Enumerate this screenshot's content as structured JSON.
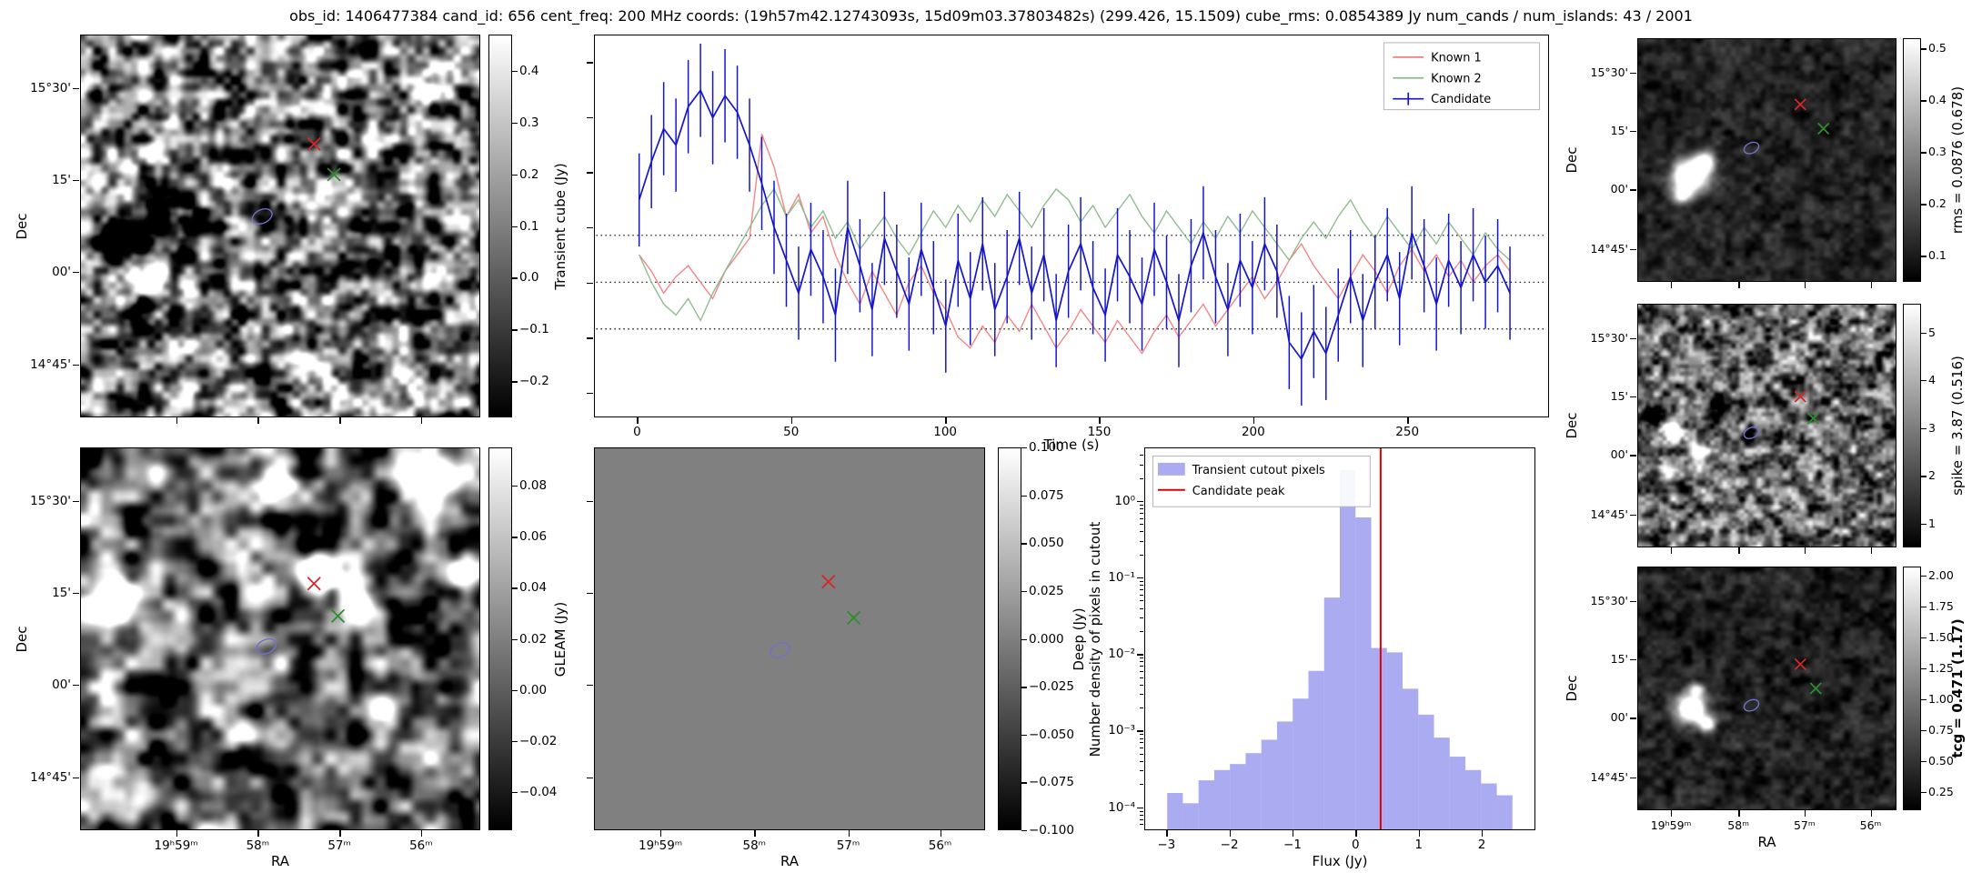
{
  "title": "obs_id: 1406477384 cand_id: 656 cent_freq: 200 MHz coords: (19h57m42.12743093s, 15d09m03.37803482s) (299.426, 15.1509) cube_rms: 0.0854389 Jy num_cands / num_islands: 43 / 2001",
  "axes": {
    "dec_label": "Dec",
    "ra_label": "RA",
    "dec_ticks": [
      "15°30'",
      "15'",
      "00'",
      "14°45'"
    ],
    "ra_ticks": [
      "19ʰ59ᵐ",
      "58ᵐ",
      "57ᵐ",
      "56ᵐ"
    ]
  },
  "colors": {
    "red_marker": "#d62728",
    "green_marker": "#2e8b2e",
    "ellipse_marker": "#7070cc",
    "known1": "#f08080",
    "known2": "#8ab98a",
    "candidate": "#1515cd",
    "hist_fill": "#6666e8",
    "candidate_peak_line": "#dd0000",
    "dotted_line": "#000000"
  },
  "chart_data": [
    {
      "id": "transient_cube",
      "type": "heatmap",
      "ylabel": "Dec",
      "xlabel": "",
      "show_x_ticklabels": false,
      "show_y_ticklabels": true,
      "colorbar": {
        "label": "Transient cube (Jy)",
        "vmin": -0.27,
        "vmax": 0.47,
        "ticks": [
          0.4,
          0.3,
          0.2,
          0.1,
          0.0,
          -0.1,
          -0.2
        ],
        "tick_labels": [
          "0.4",
          "0.3",
          "0.2",
          "0.1",
          "0.0",
          "−0.1",
          "−0.2"
        ]
      },
      "markers": {
        "red_x": [
          0.585,
          0.285
        ],
        "green_x": [
          0.635,
          0.365
        ],
        "ellipse": [
          0.455,
          0.475,
          0.026,
          0.017,
          -25
        ]
      },
      "noise": {
        "seed": 11,
        "cells": 26,
        "contrast": 1.3,
        "base": 0.5
      },
      "features": [
        {
          "x": 0.17,
          "y": 0.63,
          "r": 0.032,
          "amp": 1.9
        },
        {
          "x": 0.115,
          "y": 0.56,
          "r": 0.05,
          "amp": -1.0
        },
        {
          "x": 0.23,
          "y": 0.49,
          "r": 0.035,
          "amp": -0.7
        },
        {
          "x": 0.145,
          "y": 0.72,
          "r": 0.03,
          "amp": -0.6
        },
        {
          "x": 0.86,
          "y": 0.13,
          "r": 0.03,
          "amp": 0.7
        },
        {
          "x": 0.56,
          "y": 0.85,
          "r": 0.03,
          "amp": 0.6
        }
      ]
    },
    {
      "id": "lightcurve",
      "type": "line",
      "xlabel": "Time (s)",
      "ylabel": "",
      "xlim": [
        -14,
        296
      ],
      "ylim": [
        -0.245,
        0.45
      ],
      "x_ticks": [
        0,
        50,
        100,
        150,
        200,
        250
      ],
      "x_tick_labels": [
        "0",
        "50",
        "100",
        "150",
        "200",
        "250"
      ],
      "y_tick_values": [
        -0.2,
        -0.1,
        0.0,
        0.1,
        0.2,
        0.3,
        0.4
      ],
      "threshold_lines": [
        0.0854,
        0.0,
        -0.0854
      ],
      "x_start": 0,
      "x_step": 4,
      "legend_position": "upper right",
      "series": [
        {
          "name": "Known 1",
          "color_key": "known1",
          "y": [
            0.05,
            0.02,
            -0.02,
            0.01,
            0.03,
            0.0,
            -0.03,
            0.02,
            0.05,
            0.08,
            0.27,
            0.21,
            0.12,
            0.16,
            0.09,
            0.12,
            0.05,
            0.0,
            -0.04,
            0.02,
            -0.02,
            -0.06,
            0.0,
            0.03,
            -0.02,
            -0.05,
            -0.1,
            -0.12,
            -0.08,
            -0.11,
            -0.06,
            -0.09,
            -0.04,
            -0.08,
            -0.12,
            -0.09,
            -0.05,
            -0.08,
            -0.11,
            -0.07,
            -0.1,
            -0.13,
            -0.09,
            -0.06,
            -0.1,
            -0.07,
            -0.04,
            -0.08,
            -0.05,
            -0.02,
            0.01,
            -0.03,
            0.0,
            0.04,
            0.07,
            0.03,
            0.0,
            -0.03,
            0.01,
            0.05,
            0.02,
            -0.02,
            0.03,
            0.06,
            0.02,
            0.05,
            0.01,
            0.04,
            0.0,
            0.03,
            0.05,
            0.02
          ]
        },
        {
          "name": "Known 2",
          "color_key": "known2",
          "y": [
            0.05,
            0.0,
            -0.04,
            -0.06,
            -0.03,
            -0.07,
            -0.02,
            0.02,
            0.06,
            0.1,
            0.14,
            0.17,
            0.12,
            0.15,
            0.1,
            0.13,
            0.08,
            0.11,
            0.06,
            0.09,
            0.12,
            0.08,
            0.05,
            0.09,
            0.13,
            0.1,
            0.14,
            0.11,
            0.15,
            0.12,
            0.16,
            0.13,
            0.1,
            0.14,
            0.17,
            0.15,
            0.11,
            0.14,
            0.1,
            0.13,
            0.16,
            0.12,
            0.09,
            0.13,
            0.1,
            0.07,
            0.11,
            0.08,
            0.12,
            0.09,
            0.13,
            0.1,
            0.07,
            0.04,
            0.08,
            0.11,
            0.08,
            0.12,
            0.15,
            0.11,
            0.08,
            0.12,
            0.09,
            0.06,
            0.1,
            0.07,
            0.11,
            0.08,
            0.05,
            0.09,
            0.06,
            0.04
          ]
        },
        {
          "name": "Candidate",
          "color_key": "candidate",
          "yerr": 0.085,
          "y": [
            0.15,
            0.22,
            0.28,
            0.25,
            0.32,
            0.35,
            0.3,
            0.34,
            0.31,
            0.25,
            0.18,
            0.1,
            0.04,
            -0.02,
            0.06,
            0.01,
            -0.06,
            0.1,
            0.03,
            -0.05,
            0.08,
            0.02,
            -0.04,
            0.06,
            -0.01,
            -0.08,
            0.04,
            -0.03,
            0.07,
            -0.05,
            0.01,
            0.08,
            -0.02,
            0.05,
            -0.07,
            0.02,
            0.07,
            -0.01,
            -0.06,
            0.05,
            0.01,
            -0.04,
            0.06,
            0.0,
            -0.07,
            0.03,
            0.09,
            0.01,
            -0.05,
            0.04,
            -0.01,
            0.07,
            0.02,
            -0.11,
            -0.14,
            -0.09,
            -0.13,
            -0.06,
            0.01,
            -0.07,
            0.0,
            0.05,
            -0.03,
            0.09,
            0.03,
            -0.04,
            0.04,
            -0.01,
            0.05,
            0.0,
            0.03,
            -0.02
          ]
        }
      ]
    },
    {
      "id": "gleam",
      "type": "heatmap",
      "ylabel": "Dec",
      "xlabel": "RA",
      "show_x_ticklabels": true,
      "show_y_ticklabels": true,
      "colorbar": {
        "label": "GLEAM (Jy)",
        "vmin": -0.055,
        "vmax": 0.095,
        "ticks": [
          0.08,
          0.06,
          0.04,
          0.02,
          0.0,
          -0.02,
          -0.04
        ],
        "tick_labels": [
          "0.08",
          "0.06",
          "0.04",
          "0.02",
          "0.00",
          "−0.02",
          "−0.04"
        ]
      },
      "markers": {
        "red_x": [
          0.585,
          0.355
        ],
        "green_x": [
          0.645,
          0.44
        ],
        "ellipse": [
          0.465,
          0.52,
          0.026,
          0.017,
          -25
        ]
      },
      "noise": {
        "seed": 23,
        "cells": 16,
        "contrast": 1.15,
        "base": 0.42
      },
      "features": [
        {
          "x": 0.085,
          "y": 0.405,
          "r": 0.042,
          "amp": 1.8
        },
        {
          "x": 0.6,
          "y": 0.335,
          "r": 0.034,
          "amp": 1.9
        },
        {
          "x": 0.7,
          "y": 0.42,
          "r": 0.028,
          "amp": 1.5
        },
        {
          "x": 0.875,
          "y": 0.09,
          "r": 0.04,
          "amp": 1.7
        },
        {
          "x": 0.965,
          "y": 0.33,
          "r": 0.028,
          "amp": 1.2
        },
        {
          "x": 0.49,
          "y": 0.09,
          "r": 0.03,
          "amp": 0.9
        },
        {
          "x": 0.17,
          "y": 0.91,
          "r": 0.028,
          "amp": 0.9
        },
        {
          "x": 0.42,
          "y": 0.75,
          "r": 0.024,
          "amp": 0.8
        },
        {
          "x": 0.76,
          "y": 0.68,
          "r": 0.026,
          "amp": 0.7
        }
      ]
    },
    {
      "id": "deep",
      "type": "heatmap",
      "ylabel": "",
      "xlabel": "RA",
      "show_x_ticklabels": true,
      "show_y_ticklabels": false,
      "colorbar": {
        "label": "Deep (Jy)",
        "vmin": -0.1,
        "vmax": 0.1,
        "ticks": [
          0.1,
          0.075,
          0.05,
          0.025,
          0.0,
          -0.025,
          -0.05,
          -0.075,
          -0.1
        ],
        "tick_labels": [
          "0.100",
          "0.075",
          "0.050",
          "0.025",
          "0.000",
          "−0.025",
          "−0.050",
          "−0.075",
          "−0.100"
        ]
      },
      "markers": {
        "red_x": [
          0.6,
          0.35
        ],
        "green_x": [
          0.665,
          0.445
        ],
        "ellipse": [
          0.475,
          0.53,
          0.026,
          0.017,
          -25
        ]
      },
      "noise": {
        "seed": 5,
        "cells": 2,
        "contrast": 0.0,
        "base": 0.5
      },
      "features": []
    },
    {
      "id": "flux_histogram",
      "type": "bar",
      "xlabel": "Flux (Jy)",
      "ylabel": "Number density of pixels in cutout",
      "ylog": true,
      "xlim": [
        -3.35,
        2.85
      ],
      "ylim": [
        5e-05,
        5
      ],
      "bin_start": -3.0,
      "bin_width": 0.25,
      "values": [
        0.00015,
        0.00011,
        0.00022,
        0.0003,
        0.00036,
        0.0005,
        0.00075,
        0.0013,
        0.0026,
        0.006,
        0.055,
        2.6,
        0.62,
        0.012,
        0.0105,
        0.0035,
        0.0016,
        0.0008,
        0.00045,
        0.0003,
        0.0002,
        0.00014
      ],
      "candidate_peak": 0.4,
      "x_ticks": [
        -3,
        -2,
        -1,
        0,
        1,
        2
      ],
      "x_tick_labels": [
        "−3",
        "−2",
        "−1",
        "0",
        "1",
        "2"
      ],
      "y_tick_exponents": [
        0,
        -1,
        -2,
        -3,
        -4
      ],
      "y_tick_labels": [
        "10⁰",
        "10⁻¹",
        "10⁻²",
        "10⁻³",
        "10⁻⁴"
      ],
      "legend": [
        {
          "label": "Transient cutout pixels",
          "type": "patch"
        },
        {
          "label": "Candidate peak",
          "type": "line"
        }
      ]
    },
    {
      "id": "rms",
      "type": "heatmap",
      "ylabel": "Dec",
      "xlabel": "",
      "show_x_ticklabels": false,
      "show_y_ticklabels": true,
      "colorbar": {
        "label": "rms = 0.0876 (0.678)",
        "vmin": 0.05,
        "vmax": 0.52,
        "ticks": [
          0.5,
          0.4,
          0.3,
          0.2,
          0.1
        ],
        "tick_labels": [
          "0.5",
          "0.4",
          "0.3",
          "0.2",
          "0.1"
        ]
      },
      "markers": {
        "red_x": [
          0.63,
          0.27
        ],
        "green_x": [
          0.72,
          0.37
        ],
        "ellipse": [
          0.44,
          0.45,
          0.03,
          0.02,
          -25
        ]
      },
      "noise": {
        "seed": 31,
        "cells": 26,
        "contrast": 0.22,
        "base": 0.14
      },
      "features": [
        {
          "x": 0.2,
          "y": 0.565,
          "r": 0.045,
          "amp": 1.7
        },
        {
          "x": 0.255,
          "y": 0.5,
          "r": 0.028,
          "amp": 1.0
        },
        {
          "x": 0.17,
          "y": 0.64,
          "r": 0.025,
          "amp": 0.8
        }
      ]
    },
    {
      "id": "spike",
      "type": "heatmap",
      "ylabel": "Dec",
      "xlabel": "",
      "show_x_ticklabels": false,
      "show_y_ticklabels": true,
      "colorbar": {
        "label": "spike = 3.87 (0.516)",
        "vmin": 0.5,
        "vmax": 5.6,
        "ticks": [
          5,
          4,
          3,
          2,
          1
        ],
        "tick_labels": [
          "5",
          "4",
          "3",
          "2",
          "1"
        ]
      },
      "markers": {
        "red_x": [
          0.63,
          0.38
        ],
        "green_x": [
          0.68,
          0.47
        ],
        "ellipse": [
          0.44,
          0.53,
          0.03,
          0.02,
          -25
        ]
      },
      "noise": {
        "seed": 47,
        "cells": 30,
        "contrast": 0.85,
        "base": 0.42
      },
      "features": [
        {
          "x": 0.13,
          "y": 0.52,
          "r": 0.028,
          "amp": 1.3
        },
        {
          "x": 0.065,
          "y": 0.46,
          "r": 0.028,
          "amp": -0.9
        },
        {
          "x": 0.22,
          "y": 0.6,
          "r": 0.024,
          "amp": 1.0
        },
        {
          "x": 0.3,
          "y": 0.42,
          "r": 0.026,
          "amp": -0.8
        },
        {
          "x": 0.115,
          "y": 0.7,
          "r": 0.022,
          "amp": 0.9
        },
        {
          "x": 0.42,
          "y": 0.55,
          "r": 0.02,
          "amp": -0.6
        }
      ]
    },
    {
      "id": "tcg",
      "type": "heatmap",
      "ylabel": "Dec",
      "xlabel": "RA",
      "show_x_ticklabels": true,
      "show_y_ticklabels": true,
      "colorbar": {
        "label": "tcg = 0.471 (1.17)",
        "bold": true,
        "vmin": 0.1,
        "vmax": 2.07,
        "ticks": [
          2.0,
          1.75,
          1.5,
          1.25,
          1.0,
          0.75,
          0.5,
          0.25
        ],
        "tick_labels": [
          "2.00",
          "1.75",
          "1.50",
          "1.25",
          "1.00",
          "0.75",
          "0.50",
          "0.25"
        ]
      },
      "markers": {
        "red_x": [
          0.63,
          0.4
        ],
        "green_x": [
          0.69,
          0.5
        ],
        "ellipse": [
          0.44,
          0.57,
          0.03,
          0.02,
          -25
        ]
      },
      "noise": {
        "seed": 63,
        "cells": 26,
        "contrast": 0.24,
        "base": 0.13
      },
      "features": [
        {
          "x": 0.2,
          "y": 0.58,
          "r": 0.038,
          "amp": 1.6
        },
        {
          "x": 0.265,
          "y": 0.64,
          "r": 0.024,
          "amp": 1.0
        },
        {
          "x": 0.225,
          "y": 0.5,
          "r": 0.02,
          "amp": 0.8
        }
      ]
    }
  ]
}
